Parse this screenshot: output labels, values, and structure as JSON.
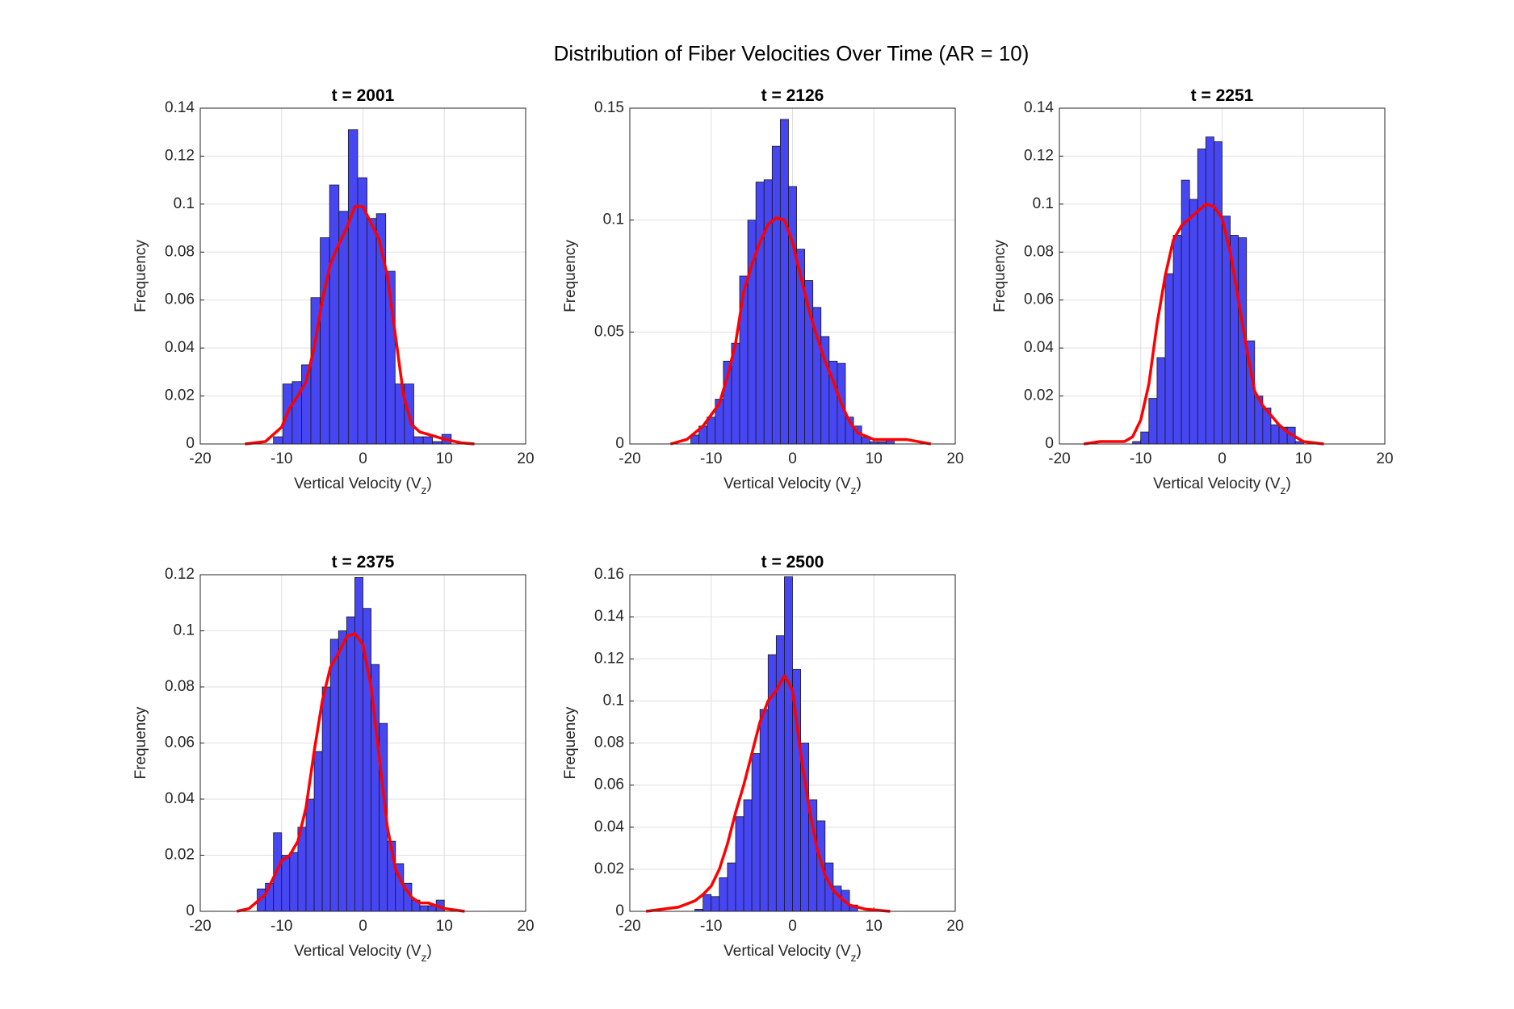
{
  "title": "Distribution of Fiber Velocities Over Time (AR = 10)",
  "chart_data": [
    {
      "type": "histogram",
      "title": "t = 2001",
      "xlabel": [
        "Vertical Velocity (V",
        "z",
        ")"
      ],
      "ylabel": "Frequency",
      "bins": [
        -11,
        -9.85,
        -8.7,
        -7.55,
        -6.4,
        -5.25,
        -4.1,
        -2.95,
        -1.8,
        -0.65,
        0.5,
        1.65,
        2.8,
        3.95,
        5.1,
        6.25,
        7.4,
        8.55,
        9.7,
        10.85
      ],
      "values": [
        0.003,
        0.025,
        0.026,
        0.033,
        0.061,
        0.086,
        0.108,
        0.097,
        0.131,
        0.111,
        0.094,
        0.096,
        0.072,
        0.025,
        0.025,
        0.003,
        0.003,
        0.001,
        0.004
      ],
      "color": "#4646f2",
      "kde": {
        "x": [
          -14.5,
          -12,
          -10,
          -9,
          -8,
          -7,
          -6,
          -5,
          -4,
          -3,
          -2,
          -1,
          0,
          1,
          2,
          3,
          4,
          5,
          6,
          7,
          8,
          9,
          10,
          12,
          13.7
        ],
        "y": [
          0,
          0.001,
          0.007,
          0.015,
          0.02,
          0.026,
          0.04,
          0.06,
          0.075,
          0.083,
          0.09,
          0.099,
          0.099,
          0.092,
          0.085,
          0.07,
          0.045,
          0.02,
          0.008,
          0.005,
          0.004,
          0.003,
          0.002,
          0.0005,
          0
        ],
        "color": "#ff0000"
      },
      "xlim": [
        -20,
        20
      ],
      "xticks": [
        -20,
        -10,
        0,
        10,
        20
      ],
      "ylim": [
        0,
        0.14
      ],
      "yticks": [
        0,
        0.02,
        0.04,
        0.06,
        0.08,
        0.1,
        0.12,
        0.14
      ],
      "grid": true
    },
    {
      "type": "histogram",
      "title": "t = 2126",
      "xlabel": [
        "Vertical Velocity (V",
        "z",
        ")"
      ],
      "ylabel": "Frequency",
      "bins": [
        -12.5,
        -11.5,
        -10.5,
        -9.5,
        -8.5,
        -7.5,
        -6.5,
        -5.5,
        -4.5,
        -3.5,
        -2.5,
        -1.5,
        -0.5,
        0.5,
        1.5,
        2.5,
        3.5,
        4.5,
        5.5,
        6.5,
        7.5,
        8.5,
        9.5,
        10.5,
        11.5,
        12.5
      ],
      "values": [
        0.004,
        0.008,
        0.012,
        0.02,
        0.037,
        0.045,
        0.075,
        0.1,
        0.117,
        0.118,
        0.133,
        0.145,
        0.115,
        0.087,
        0.073,
        0.061,
        0.048,
        0.037,
        0.036,
        0.012,
        0.008,
        0.003,
        0.001,
        0.001,
        0.002
      ],
      "color": "#4646f2",
      "kde": {
        "x": [
          -15,
          -13,
          -11,
          -10,
          -9,
          -8,
          -7,
          -6,
          -5,
          -4,
          -3,
          -2,
          -1,
          0,
          1,
          2,
          3,
          4,
          5,
          6,
          7,
          8,
          10,
          12,
          14,
          17
        ],
        "y": [
          0,
          0.002,
          0.008,
          0.013,
          0.018,
          0.03,
          0.045,
          0.068,
          0.08,
          0.09,
          0.098,
          0.101,
          0.1,
          0.09,
          0.075,
          0.06,
          0.048,
          0.037,
          0.028,
          0.018,
          0.01,
          0.005,
          0.002,
          0.002,
          0.002,
          0
        ],
        "color": "#ff0000"
      },
      "xlim": [
        -20,
        20
      ],
      "xticks": [
        -20,
        -10,
        0,
        10,
        20
      ],
      "ylim": [
        0,
        0.15
      ],
      "yticks": [
        0,
        0.05,
        0.1,
        0.15
      ],
      "grid": true
    },
    {
      "type": "histogram",
      "title": "t = 2251",
      "xlabel": [
        "Vertical Velocity (V",
        "z",
        ")"
      ],
      "ylabel": "Frequency",
      "bins": [
        -11,
        -10,
        -9,
        -8,
        -7,
        -6,
        -5,
        -4,
        -3,
        -2,
        -1,
        0,
        1,
        2,
        3,
        4,
        5,
        6,
        7,
        8,
        9,
        10
      ],
      "values": [
        0.001,
        0.005,
        0.019,
        0.036,
        0.071,
        0.087,
        0.11,
        0.102,
        0.123,
        0.128,
        0.126,
        0.095,
        0.087,
        0.086,
        0.043,
        0.02,
        0.015,
        0.008,
        0.007,
        0.007,
        0.001
      ],
      "color": "#4646f2",
      "kde": {
        "x": [
          -17,
          -15,
          -14,
          -13,
          -12,
          -11,
          -10,
          -9,
          -8,
          -7,
          -6,
          -5,
          -4,
          -3,
          -2,
          -1,
          0,
          1,
          2,
          3,
          4,
          5,
          6,
          7,
          8,
          9,
          10,
          12.5
        ],
        "y": [
          0,
          0.001,
          0.001,
          0.001,
          0.001,
          0.003,
          0.01,
          0.025,
          0.05,
          0.07,
          0.085,
          0.091,
          0.094,
          0.097,
          0.1,
          0.099,
          0.094,
          0.08,
          0.06,
          0.04,
          0.022,
          0.016,
          0.012,
          0.008,
          0.005,
          0.003,
          0.001,
          0
        ],
        "color": "#ff0000"
      },
      "xlim": [
        -20,
        20
      ],
      "xticks": [
        -20,
        -10,
        0,
        10,
        20
      ],
      "ylim": [
        0,
        0.14
      ],
      "yticks": [
        0,
        0.02,
        0.04,
        0.06,
        0.08,
        0.1,
        0.12,
        0.14
      ],
      "grid": true
    },
    {
      "type": "histogram",
      "title": "t = 2375",
      "xlabel": [
        "Vertical Velocity (V",
        "z",
        ")"
      ],
      "ylabel": "Frequency",
      "bins": [
        -13,
        -12,
        -11,
        -10,
        -9,
        -8,
        -7,
        -6,
        -5,
        -4,
        -3,
        -2,
        -1,
        0,
        1,
        2,
        3,
        4,
        5,
        6,
        7,
        8,
        9,
        10
      ],
      "values": [
        0.008,
        0.01,
        0.028,
        0.02,
        0.021,
        0.03,
        0.04,
        0.057,
        0.08,
        0.097,
        0.1,
        0.105,
        0.119,
        0.108,
        0.088,
        0.067,
        0.025,
        0.017,
        0.01,
        0.004,
        0.002,
        0.002,
        0.004
      ],
      "color": "#4646f2",
      "kde": {
        "x": [
          -15.5,
          -14,
          -12,
          -11,
          -10,
          -9,
          -8,
          -7,
          -6,
          -5,
          -4,
          -3,
          -2,
          -1,
          0,
          1,
          2,
          3,
          4,
          5,
          6,
          7,
          8,
          10,
          12.5
        ],
        "y": [
          0,
          0.001,
          0.006,
          0.012,
          0.018,
          0.02,
          0.025,
          0.037,
          0.057,
          0.075,
          0.087,
          0.092,
          0.098,
          0.099,
          0.095,
          0.08,
          0.055,
          0.03,
          0.015,
          0.009,
          0.005,
          0.003,
          0.003,
          0.001,
          0
        ],
        "color": "#ff0000"
      },
      "xlim": [
        -20,
        20
      ],
      "xticks": [
        -20,
        -10,
        0,
        10,
        20
      ],
      "ylim": [
        0,
        0.12
      ],
      "yticks": [
        0,
        0.02,
        0.04,
        0.06,
        0.08,
        0.1,
        0.12
      ],
      "grid": true
    },
    {
      "type": "histogram",
      "title": "t = 2500",
      "xlabel": [
        "Vertical Velocity (V",
        "z",
        ")"
      ],
      "ylabel": "Frequency",
      "bins": [
        -12,
        -11,
        -10,
        -9,
        -8,
        -7,
        -6,
        -5,
        -4,
        -3,
        -2,
        -1,
        0,
        1,
        2,
        3,
        4,
        5,
        6,
        7,
        8
      ],
      "values": [
        0.001,
        0.008,
        0.007,
        0.016,
        0.023,
        0.045,
        0.053,
        0.075,
        0.096,
        0.122,
        0.131,
        0.159,
        0.115,
        0.08,
        0.053,
        0.043,
        0.023,
        0.012,
        0.01,
        0.003
      ],
      "color": "#4646f2",
      "kde": {
        "x": [
          -18,
          -16,
          -14,
          -12,
          -11,
          -10,
          -9,
          -8,
          -7,
          -6,
          -5,
          -4,
          -3,
          -2,
          -1,
          0,
          1,
          2,
          3,
          4,
          5,
          6,
          7,
          9,
          12
        ],
        "y": [
          0,
          0.001,
          0.002,
          0.005,
          0.008,
          0.012,
          0.02,
          0.032,
          0.047,
          0.06,
          0.075,
          0.09,
          0.1,
          0.105,
          0.112,
          0.105,
          0.075,
          0.05,
          0.03,
          0.017,
          0.01,
          0.006,
          0.003,
          0.001,
          0
        ],
        "color": "#ff0000"
      },
      "xlim": [
        -20,
        20
      ],
      "xticks": [
        -20,
        -10,
        0,
        10,
        20
      ],
      "ylim": [
        0,
        0.16
      ],
      "yticks": [
        0,
        0.02,
        0.04,
        0.06,
        0.08,
        0.1,
        0.12,
        0.14,
        0.16
      ],
      "grid": true
    }
  ]
}
